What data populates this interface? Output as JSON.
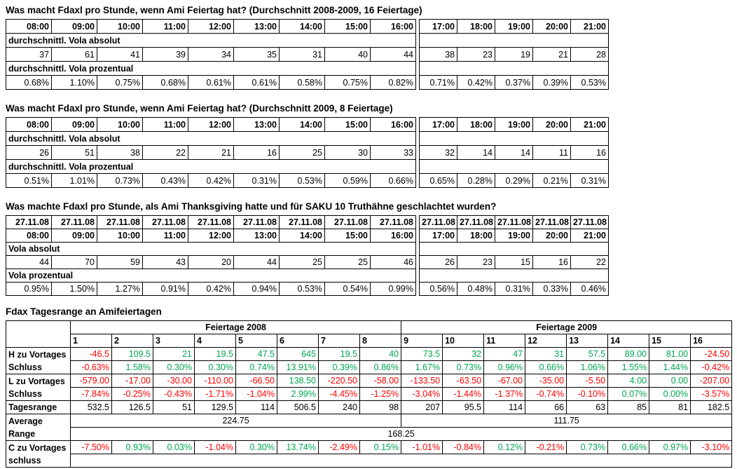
{
  "colors": {
    "positive": "#00a650",
    "negative": "#ff0000",
    "neutral": "#000000"
  },
  "hour_tables": [
    {
      "title": "Was macht Fdaxl pro Stunde, wenn Ami Feiertag hat? (Durchschnitt 2008-2009, 16 Feiertage)",
      "hours": [
        "08:00",
        "09:00",
        "10:00",
        "11:00",
        "12:00",
        "13:00",
        "14:00",
        "15:00",
        "16:00",
        "17:00",
        "18:00",
        "19:00",
        "20:00",
        "21:00"
      ],
      "split": 9,
      "rows": [
        {
          "label": "durchschnittl. Vola absolut",
          "values": [
            "37",
            "61",
            "41",
            "39",
            "34",
            "35",
            "31",
            "40",
            "44",
            "38",
            "23",
            "19",
            "21",
            "28"
          ]
        },
        {
          "label": "durchschnittl. Vola prozentual",
          "values": [
            "0.68%",
            "1.10%",
            "0.75%",
            "0.68%",
            "0.61%",
            "0.61%",
            "0.58%",
            "0.75%",
            "0.82%",
            "0.71%",
            "0.42%",
            "0.37%",
            "0.39%",
            "0.53%"
          ]
        }
      ]
    },
    {
      "title": "Was macht Fdaxl pro Stunde, wenn Ami Feiertag hat? (Durchschnitt 2009, 8 Feiertage)",
      "hours": [
        "08:00",
        "09:00",
        "10:00",
        "11:00",
        "12:00",
        "13:00",
        "14:00",
        "15:00",
        "16:00",
        "17:00",
        "18:00",
        "19:00",
        "20:00",
        "21:00"
      ],
      "split": 9,
      "rows": [
        {
          "label": "durchschnittl. Vola absolut",
          "values": [
            "26",
            "51",
            "38",
            "22",
            "21",
            "16",
            "25",
            "30",
            "33",
            "32",
            "14",
            "14",
            "11",
            "16"
          ]
        },
        {
          "label": "durchschnittl. Vola prozentual",
          "values": [
            "0.51%",
            "1.01%",
            "0.73%",
            "0.43%",
            "0.42%",
            "0.31%",
            "0.53%",
            "0.59%",
            "0.66%",
            "0.65%",
            "0.28%",
            "0.29%",
            "0.21%",
            "0.31%"
          ]
        }
      ]
    },
    {
      "title": "Was machte Fdaxl pro Stunde, als Ami Thanksgiving hatte und für SAKU 10 Truthähne geschlachtet wurden?",
      "dates": [
        "27.11.08",
        "27.11.08",
        "27.11.08",
        "27.11.08",
        "27.11.08",
        "27.11.08",
        "27.11.08",
        "27.11.08",
        "27.11.08",
        "27.11.08",
        "27.11.08",
        "27.11.08",
        "27.11.08",
        "27.11.08"
      ],
      "hours": [
        "08:00",
        "09:00",
        "10:00",
        "11:00",
        "12:00",
        "13:00",
        "14:00",
        "15:00",
        "16:00",
        "17:00",
        "18:00",
        "19:00",
        "20:00",
        "21:00"
      ],
      "split": 9,
      "rows": [
        {
          "label": "Vola absolut",
          "values": [
            "44",
            "70",
            "59",
            "43",
            "20",
            "44",
            "25",
            "25",
            "46",
            "26",
            "23",
            "15",
            "16",
            "22"
          ]
        },
        {
          "label": "Vola prozentual",
          "values": [
            "0.95%",
            "1.50%",
            "1.27%",
            "0.91%",
            "0.42%",
            "0.94%",
            "0.53%",
            "0.54%",
            "0.99%",
            "0.56%",
            "0.48%",
            "0.31%",
            "0.33%",
            "0.46%"
          ]
        }
      ]
    }
  ],
  "range_table": {
    "title": "Fdax Tagesrange an Amifeiertagen",
    "group_headers": [
      "Feiertage 2008",
      "Feiertage 2009"
    ],
    "col_numbers": [
      "1",
      "2",
      "3",
      "4",
      "5",
      "6",
      "7",
      "8",
      "9",
      "10",
      "11",
      "12",
      "13",
      "14",
      "15",
      "16"
    ],
    "groups": [
      {
        "labels": [
          "H zu Vortages",
          "Schluss"
        ],
        "rows": [
          {
            "colored": true,
            "values": [
              "-46.5",
              "109.5",
              "21",
              "19.5",
              "47.5",
              "645",
              "19.5",
              "40",
              "73.5",
              "32",
              "47",
              "31",
              "57.5",
              "89.00",
              "81.00",
              "-24.50"
            ]
          },
          {
            "colored": true,
            "values": [
              "-0.63%",
              "1.58%",
              "0.30%",
              "0.30%",
              "0.74%",
              "13.91%",
              "0.39%",
              "0.86%",
              "1.67%",
              "0.73%",
              "0.96%",
              "0.66%",
              "1.06%",
              "1.55%",
              "1.44%",
              "-0.42%"
            ]
          }
        ]
      },
      {
        "labels": [
          "L zu Vortages",
          "Schluss"
        ],
        "rows": [
          {
            "colored": true,
            "values": [
              "-579.00",
              "-17.00",
              "-30.00",
              "-110.00",
              "-66.50",
              "138.50",
              "-220.50",
              "-58.00",
              "-133.50",
              "-63.50",
              "-67.00",
              "-35.00",
              "-5.50",
              "4.00",
              "0.00",
              "-207.00"
            ]
          },
          {
            "colored": true,
            "values": [
              "-7.84%",
              "-0.25%",
              "-0.43%",
              "-1.71%",
              "-1.04%",
              "2.99%",
              "-4.45%",
              "-1.25%",
              "-3.04%",
              "-1.44%",
              "-1.37%",
              "-0.74%",
              "-0.10%",
              "0.07%",
              "0.00%",
              "-3.57%"
            ]
          }
        ]
      },
      {
        "labels": [
          "Tagesrange"
        ],
        "rows": [
          {
            "colored": false,
            "values": [
              "532.5",
              "126.5",
              "51",
              "129.5",
              "114",
              "506.5",
              "240",
              "98",
              "207",
              "95.5",
              "114",
              "66",
              "63",
              "85",
              "81",
              "182.5"
            ]
          }
        ]
      },
      {
        "labels": [
          "Average",
          "Range"
        ],
        "merged": {
          "avg_2008": "224.75",
          "avg_2009": "111.75",
          "overall": "168.25"
        }
      },
      {
        "labels": [
          "C zu Vortages",
          "schluss"
        ],
        "rows": [
          {
            "colored": true,
            "values": [
              "-7.50%",
              "0.93%",
              "0.03%",
              "-1.04%",
              "0.30%",
              "13.74%",
              "-2.49%",
              "0.15%",
              "-1.01%",
              "-0.84%",
              "0.12%",
              "-0.21%",
              "0.73%",
              "0.66%",
              "0.97%",
              "-3.10%"
            ]
          },
          {
            "empty": true
          }
        ]
      }
    ]
  }
}
